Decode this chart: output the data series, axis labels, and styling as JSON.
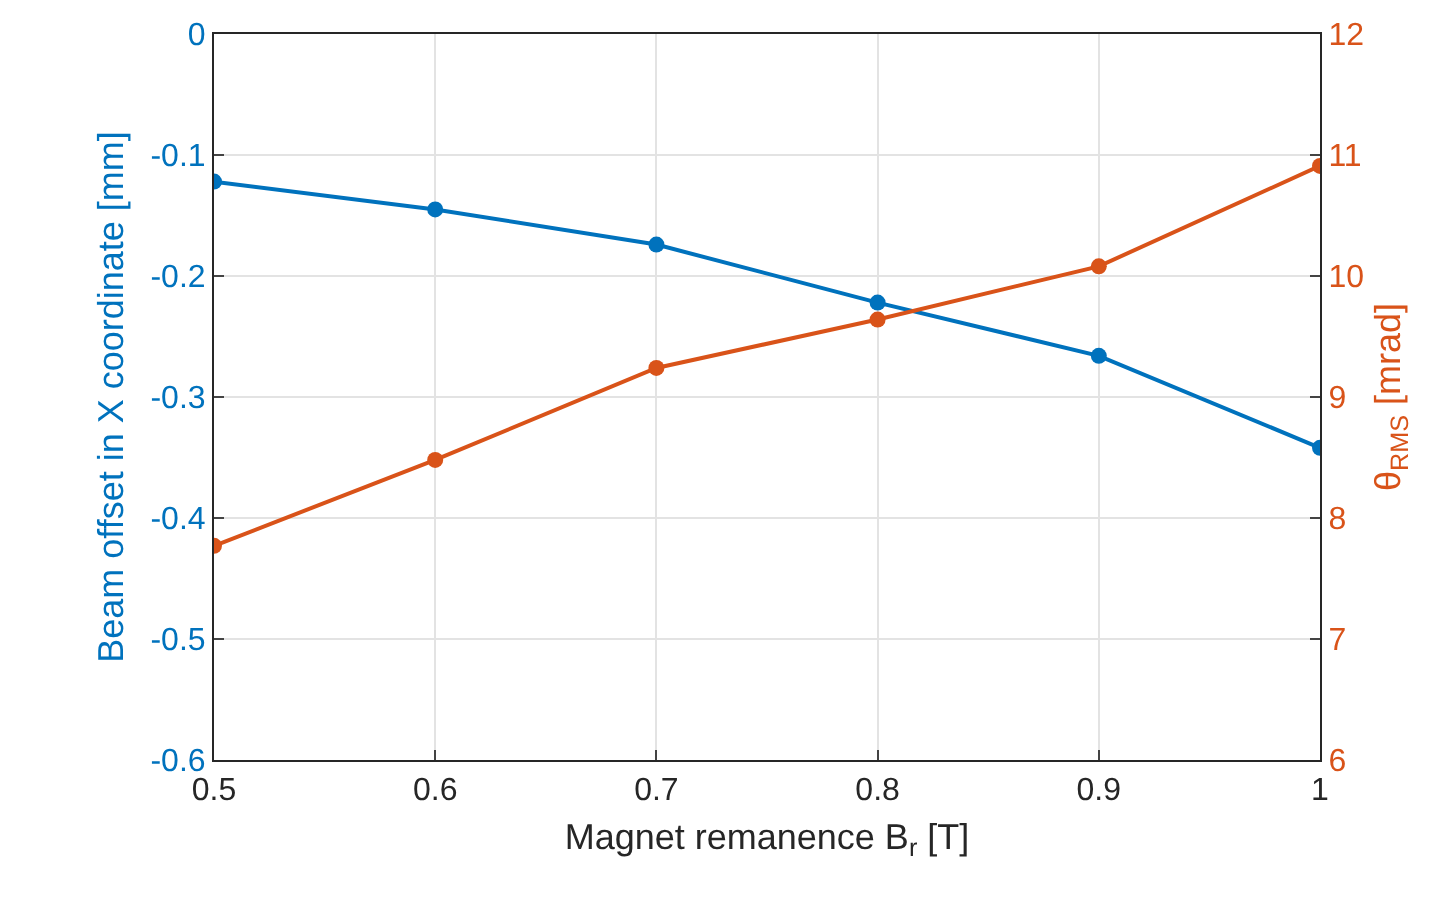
{
  "chart_data": {
    "type": "line",
    "xlabel": "Magnet remanence B$_{r}$ [T]",
    "ylabel": "Beam offset in X coordinate [mm]",
    "y2label": "θ$_{RMS}$ [mrad]",
    "x": [
      0.5,
      0.6,
      0.7,
      0.8,
      0.9,
      1.0
    ],
    "series": [
      {
        "color": "#0072bd",
        "values": [
          -0.122,
          -0.145,
          -0.174,
          -0.222,
          -0.266,
          -0.342
        ]
      },
      {
        "color": "#d95319",
        "axis": "y2",
        "values": [
          7.77,
          8.48,
          9.24,
          9.64,
          10.08,
          10.91
        ]
      }
    ],
    "xlim": [
      0.5,
      1
    ],
    "xticks": [
      0.5,
      0.6,
      0.7,
      0.8,
      0.9,
      1
    ],
    "ylim": [
      -0.6,
      0
    ],
    "yticks": [
      -0.6,
      -0.5,
      -0.4,
      -0.3,
      -0.2,
      -0.1,
      0
    ],
    "y2lim": [
      6,
      12
    ],
    "y2ticks": [
      6,
      7,
      8,
      9,
      10,
      11,
      12
    ],
    "grid": true,
    "marker": "circle",
    "line_style": "solid"
  }
}
